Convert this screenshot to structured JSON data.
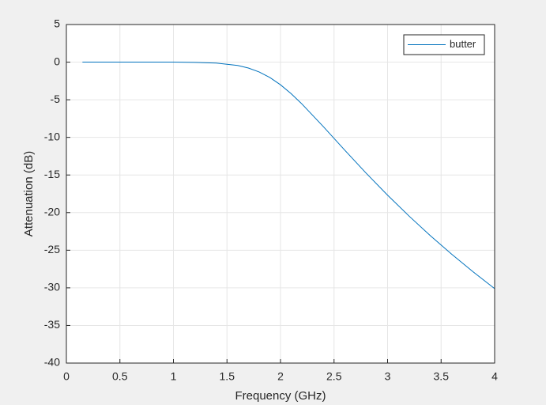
{
  "chart_data": {
    "type": "line",
    "xlabel": "Frequency (GHz)",
    "ylabel": "Attenuation (dB)",
    "x": [
      0.15,
      0.5,
      1.0,
      1.2,
      1.4,
      1.6,
      1.7,
      1.8,
      1.9,
      2.0,
      2.1,
      2.2,
      2.4,
      2.6,
      2.8,
      3.0,
      3.2,
      3.4,
      3.6,
      3.8,
      4.0
    ],
    "series": [
      {
        "name": "butter",
        "color": "#0072bd",
        "values": [
          0,
          0,
          0,
          -0.03,
          -0.12,
          -0.44,
          -0.78,
          -1.3,
          -2.04,
          -3.01,
          -4.2,
          -5.56,
          -8.57,
          -11.7,
          -14.76,
          -17.68,
          -20.45,
          -23.07,
          -25.54,
          -27.88,
          -30.1
        ]
      }
    ],
    "xlim": [
      0,
      4
    ],
    "xticks": [
      0,
      0.5,
      1,
      1.5,
      2,
      2.5,
      3,
      3.5,
      4
    ],
    "ylim": [
      -40,
      5
    ],
    "yticks": [
      -40,
      -35,
      -30,
      -25,
      -20,
      -15,
      -10,
      -5,
      0,
      5
    ],
    "grid": true,
    "legend": "top-right"
  }
}
